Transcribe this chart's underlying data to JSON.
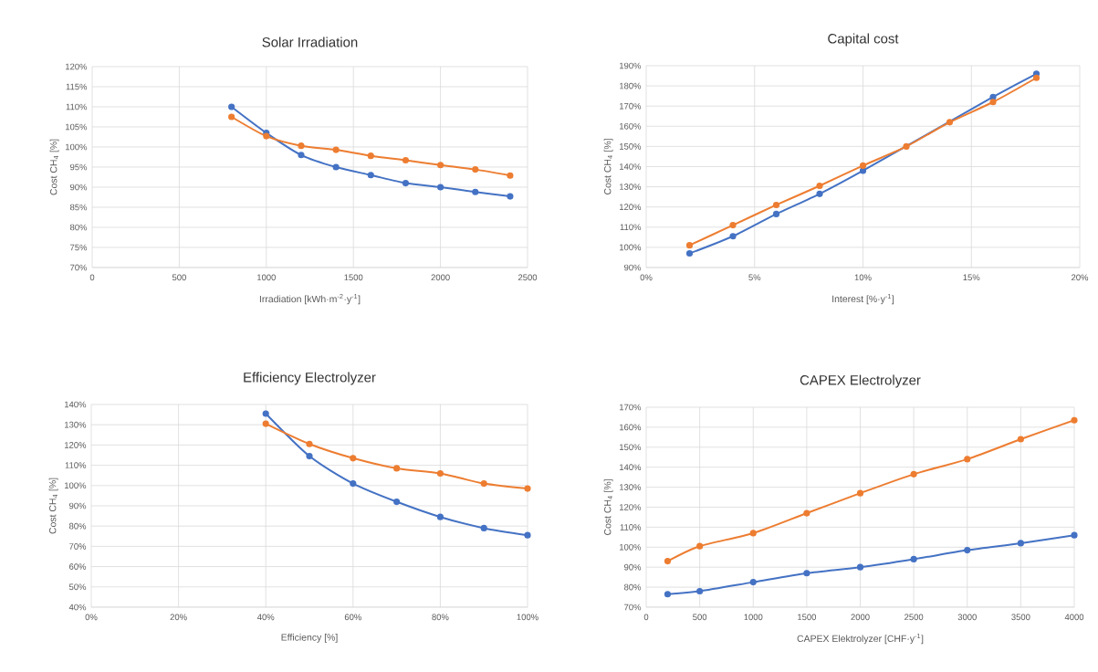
{
  "chart_data": [
    {
      "type": "line",
      "title": "Solar Irradiation",
      "xlabel": "Irradiation [kWh·m$^{-2}$·y$^{-1}$]",
      "ylabel": "Cost CH$_{4}$ [%]",
      "x": [
        800,
        1000,
        1200,
        1400,
        1600,
        1800,
        2000,
        2200,
        2400
      ],
      "series": [
        {
          "color": "#4472c4",
          "values": [
            110,
            103.5,
            98,
            95,
            93,
            91,
            90,
            88.8,
            87.7
          ]
        },
        {
          "color": "#ed7d31",
          "values": [
            107.5,
            102.7,
            100.3,
            99.3,
            97.8,
            96.7,
            95.5,
            94.4,
            92.9
          ]
        }
      ],
      "xlim": [
        0,
        2500
      ],
      "xticks": [
        0,
        500,
        1000,
        1500,
        2000,
        2500
      ],
      "ylim": [
        70,
        120
      ],
      "yticks": [
        {
          "value": 70,
          "label": "70%"
        },
        {
          "value": 75,
          "label": "75%"
        },
        {
          "value": 80,
          "label": "80%"
        },
        {
          "value": 85,
          "label": "85%"
        },
        {
          "value": 90,
          "label": "90%"
        },
        {
          "value": 95,
          "label": "95%"
        },
        {
          "value": 100,
          "label": "100%"
        },
        {
          "value": 105,
          "label": "105%"
        },
        {
          "value": 110,
          "label": "110%"
        },
        {
          "value": 115,
          "label": "115%"
        },
        {
          "value": 120,
          "label": "120%"
        }
      ],
      "grid": true,
      "marker": "circle",
      "line_style": "solid"
    },
    {
      "type": "line",
      "title": "Capital cost",
      "xlabel": "Interest [%·y$^{-1}$]",
      "ylabel": "Cost CH$_{4}$ [%]",
      "x": [
        2,
        4,
        6,
        8,
        10,
        12,
        14,
        16,
        18
      ],
      "series": [
        {
          "color": "#4472c4",
          "values": [
            97,
            105.5,
            116.5,
            126.5,
            138,
            null,
            null,
            174.5,
            186
          ]
        },
        {
          "color": "#ed7d31",
          "values": [
            101,
            111,
            121,
            130.5,
            140.5,
            150,
            162,
            172,
            184
          ]
        }
      ],
      "xlim": [
        0,
        20
      ],
      "xticks": [
        {
          "value": 0,
          "label": "0%"
        },
        {
          "value": 5,
          "label": "5%"
        },
        {
          "value": 10,
          "label": "10%"
        },
        {
          "value": 15,
          "label": "15%"
        },
        {
          "value": 20,
          "label": "20%"
        }
      ],
      "ylim": [
        90,
        190
      ],
      "yticks": [
        {
          "value": 90,
          "label": "90%"
        },
        {
          "value": 100,
          "label": "100%"
        },
        {
          "value": 110,
          "label": "110%"
        },
        {
          "value": 120,
          "label": "120%"
        },
        {
          "value": 130,
          "label": "130%"
        },
        {
          "value": 140,
          "label": "140%"
        },
        {
          "value": 150,
          "label": "150%"
        },
        {
          "value": 160,
          "label": "160%"
        },
        {
          "value": 170,
          "label": "170%"
        },
        {
          "value": 180,
          "label": "180%"
        },
        {
          "value": 190,
          "label": "190%"
        }
      ],
      "grid": true,
      "marker": "circle",
      "line_style": "solid"
    },
    {
      "type": "line",
      "title": "Efficiency Electrolyzer",
      "xlabel": "Efficiency [%]",
      "ylabel": "Cost CH$_{4}$ [%]",
      "x": [
        40,
        50,
        60,
        70,
        80,
        90,
        100
      ],
      "series": [
        {
          "color": "#4472c4",
          "values": [
            135.5,
            114.5,
            101,
            92,
            84.5,
            79,
            75.5
          ]
        },
        {
          "color": "#ed7d31",
          "values": [
            130.5,
            120.5,
            113.5,
            108.5,
            106,
            101,
            98.5
          ]
        }
      ],
      "xlim": [
        0,
        100
      ],
      "xticks": [
        {
          "value": 0,
          "label": "0%"
        },
        {
          "value": 20,
          "label": "20%"
        },
        {
          "value": 40,
          "label": "40%"
        },
        {
          "value": 60,
          "label": "60%"
        },
        {
          "value": 80,
          "label": "80%"
        },
        {
          "value": 100,
          "label": "100%"
        }
      ],
      "ylim": [
        40,
        140
      ],
      "yticks": [
        {
          "value": 40,
          "label": "40%"
        },
        {
          "value": 50,
          "label": "50%"
        },
        {
          "value": 60,
          "label": "60%"
        },
        {
          "value": 70,
          "label": "70%"
        },
        {
          "value": 80,
          "label": "80%"
        },
        {
          "value": 90,
          "label": "90%"
        },
        {
          "value": 100,
          "label": "100%"
        },
        {
          "value": 110,
          "label": "110%"
        },
        {
          "value": 120,
          "label": "120%"
        },
        {
          "value": 130,
          "label": "130%"
        },
        {
          "value": 140,
          "label": "140%"
        }
      ],
      "grid": true,
      "marker": "circle",
      "line_style": "solid"
    },
    {
      "type": "line",
      "title": "CAPEX Electrolyzer",
      "xlabel": "CAPEX Elektrolyzer [CHF·y$^{-1}$]",
      "ylabel": "Cost CH$_{4}$ [%]",
      "x": [
        200,
        500,
        1000,
        1500,
        2000,
        2500,
        3000,
        3500,
        4000
      ],
      "series": [
        {
          "color": "#4472c4",
          "values": [
            76.5,
            78,
            82.5,
            87,
            90,
            94,
            98.5,
            102,
            106
          ]
        },
        {
          "color": "#ed7d31",
          "values": [
            93,
            100.5,
            107,
            117,
            127,
            136.5,
            144,
            154,
            163.5
          ]
        }
      ],
      "xlim": [
        0,
        4000
      ],
      "xticks": [
        0,
        500,
        1000,
        1500,
        2000,
        2500,
        3000,
        3500,
        4000
      ],
      "ylim": [
        70,
        170
      ],
      "yticks": [
        {
          "value": 70,
          "label": "70%"
        },
        {
          "value": 80,
          "label": "80%"
        },
        {
          "value": 90,
          "label": "90%"
        },
        {
          "value": 100,
          "label": "100%"
        },
        {
          "value": 110,
          "label": "110%"
        },
        {
          "value": 120,
          "label": "120%"
        },
        {
          "value": 130,
          "label": "130%"
        },
        {
          "value": 140,
          "label": "140%"
        },
        {
          "value": 150,
          "label": "150%"
        },
        {
          "value": 160,
          "label": "160%"
        },
        {
          "value": 170,
          "label": "170%"
        }
      ],
      "grid": true,
      "marker": "circle",
      "line_style": "solid"
    }
  ]
}
